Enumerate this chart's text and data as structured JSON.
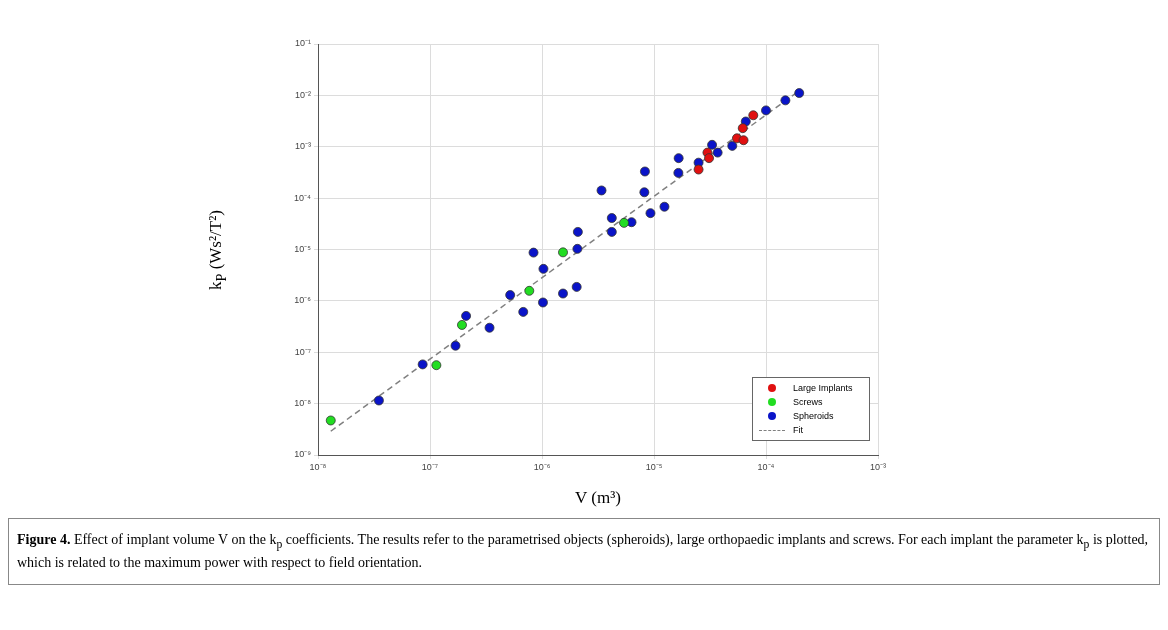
{
  "chart_data": {
    "type": "scatter",
    "xlabel": "V (m³)",
    "ylabel": "k$_{P}$ (Ws²/T²)",
    "log": "xy",
    "xlim": [
      1e-08,
      0.001
    ],
    "ylim": [
      1e-09,
      0.1
    ],
    "xticks": [
      {
        "value": 1e-08,
        "label": "10⁻⁸"
      },
      {
        "value": 1e-07,
        "label": "10⁻⁷"
      },
      {
        "value": 1e-06,
        "label": "10⁻⁶"
      },
      {
        "value": 1e-05,
        "label": "10⁻⁵"
      },
      {
        "value": 0.0001,
        "label": "10⁻⁴"
      },
      {
        "value": 0.001,
        "label": "10⁻³"
      }
    ],
    "yticks": [
      {
        "value": 1e-09,
        "label": "10⁻⁹"
      },
      {
        "value": 1e-08,
        "label": "10⁻⁸"
      },
      {
        "value": 1e-07,
        "label": "10⁻⁷"
      },
      {
        "value": 1e-06,
        "label": "10⁻⁶"
      },
      {
        "value": 1e-05,
        "label": "10⁻⁵"
      },
      {
        "value": 0.0001,
        "label": "10⁻⁴"
      },
      {
        "value": 0.001,
        "label": "10⁻³"
      },
      {
        "value": 0.01,
        "label": "10⁻²"
      },
      {
        "value": 0.1,
        "label": "10⁻¹"
      }
    ],
    "grid": true,
    "legend": "bottom right",
    "marker": "circle",
    "series": [
      {
        "name": "Large Implants",
        "color": "#e01010",
        "x": [
          2.5e-05,
          3e-05,
          3.1e-05,
          5.5e-05,
          6.3e-05,
          6.2e-05,
          7.7e-05
        ],
        "values": [
          0.00036,
          0.00077,
          0.0006,
          0.00146,
          0.00134,
          0.0023,
          0.0041
        ]
      },
      {
        "name": "Screws",
        "color": "#22dd22",
        "x": [
          1.3e-08,
          1.14e-07,
          1.93e-07,
          7.7e-07,
          1.54e-06,
          5.4e-06
        ],
        "values": [
          4.7e-09,
          5.6e-08,
          3.4e-07,
          1.57e-06,
          8.8e-06,
          3.3e-05
        ]
      },
      {
        "name": "Spheroids",
        "color": "#0a14c8",
        "x": [
          3.5e-08,
          8.6e-08,
          1.69e-07,
          2.1e-07,
          3.4e-07,
          5.2e-07,
          6.8e-07,
          8.4e-07,
          1.02e-06,
          1.03e-06,
          1.54e-06,
          2.04e-06,
          2.07e-06,
          2.09e-06,
          3.4e-06,
          4.2e-06,
          4.2e-06,
          6.3e-06,
          8.2e-06,
          8.3e-06,
          9.3e-06,
          1.24e-05,
          1.65e-05,
          1.66e-05,
          2.5e-05,
          3.3e-05,
          3.7e-05,
          5e-05,
          6.6e-05,
          0.0001,
          0.000149,
          0.000198
        ],
        "values": [
          1.15e-08,
          5.8e-08,
          1.34e-07,
          5.1e-07,
          3e-07,
          1.3e-06,
          6.1e-07,
          8.7e-06,
          9.3e-07,
          4.2e-06,
          1.39e-06,
          1.87e-06,
          1.03e-05,
          2.2e-05,
          0.000141,
          2.2e-05,
          4.1e-05,
          3.4e-05,
          0.00013,
          0.00033,
          5.1e-05,
          6.8e-05,
          0.00031,
          0.0006,
          0.00049,
          0.00109,
          0.00077,
          0.00104,
          0.0031,
          0.0051,
          0.008,
          0.0111
        ]
      },
      {
        "name": "Fit",
        "type": "line",
        "color": "#808080",
        "line_style": "dashed",
        "marker": "none",
        "x": [
          1.3e-08,
          0.0002
        ],
        "values": [
          2.9e-09,
          0.0125
        ]
      }
    ],
    "annotations": [
      "Figure 4.",
      "Effect of implant volume V on the k$_{p}$ coefficients. The results refer to the parametrised objects (spheroids), large orthopaedic implants and screws. For each implant the parameter k$_{p}$ is plotted, which is related to the maximum power with respect to field orientation."
    ]
  }
}
